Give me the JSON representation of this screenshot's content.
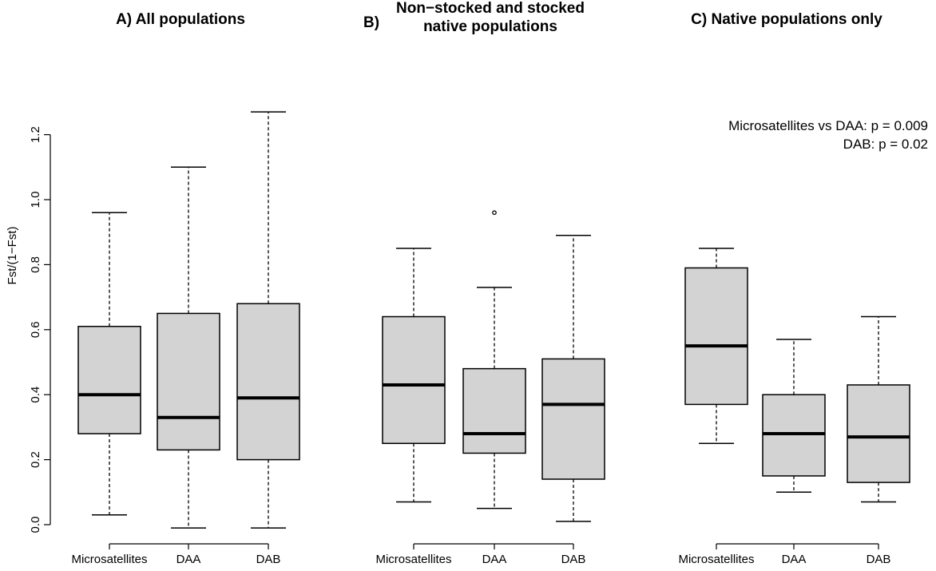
{
  "chart_data": {
    "type": "boxplot",
    "ylabel": "Fst/(1−Fst)",
    "ylim": [
      0,
      1.3
    ],
    "yticks": [
      0.0,
      0.2,
      0.4,
      0.6,
      0.8,
      1.0,
      1.2
    ],
    "ytick_labels": [
      "0.0",
      "0.2",
      "0.4",
      "0.6",
      "0.8",
      "1.0",
      "1.2"
    ],
    "box_fill": "#d3d3d3",
    "panels": [
      {
        "title_letter": "A)",
        "title_lines": [
          "All populations"
        ],
        "annotation_lines": [],
        "categories": [
          "Microsatellites",
          "DAA",
          "DAB"
        ],
        "boxes": [
          {
            "min": 0.03,
            "q1": 0.28,
            "median": 0.4,
            "q3": 0.61,
            "max": 0.96,
            "outliers": []
          },
          {
            "min": -0.01,
            "q1": 0.23,
            "median": 0.33,
            "q3": 0.65,
            "max": 1.1,
            "outliers": []
          },
          {
            "min": -0.01,
            "q1": 0.2,
            "median": 0.39,
            "q3": 0.68,
            "max": 1.27,
            "outliers": []
          }
        ]
      },
      {
        "title_letter": "B)",
        "title_lines": [
          "Non−stocked and stocked",
          "native populations"
        ],
        "annotation_lines": [],
        "categories": [
          "Microsatellites",
          "DAA",
          "DAB"
        ],
        "boxes": [
          {
            "min": 0.07,
            "q1": 0.25,
            "median": 0.43,
            "q3": 0.64,
            "max": 0.85,
            "outliers": []
          },
          {
            "min": 0.05,
            "q1": 0.22,
            "median": 0.28,
            "q3": 0.48,
            "max": 0.73,
            "outliers": [
              0.96
            ]
          },
          {
            "min": 0.01,
            "q1": 0.14,
            "median": 0.37,
            "q3": 0.51,
            "max": 0.89,
            "outliers": []
          }
        ]
      },
      {
        "title_letter": "C)",
        "title_lines": [
          "Native populations only"
        ],
        "annotation_lines": [
          "Microsatellites vs DAA: p = 0.009",
          "DAB: p = 0.02"
        ],
        "categories": [
          "Microsatellites",
          "DAA",
          "DAB"
        ],
        "boxes": [
          {
            "min": 0.25,
            "q1": 0.37,
            "median": 0.55,
            "q3": 0.79,
            "max": 0.85,
            "outliers": []
          },
          {
            "min": 0.1,
            "q1": 0.15,
            "median": 0.28,
            "q3": 0.4,
            "max": 0.57,
            "outliers": []
          },
          {
            "min": 0.07,
            "q1": 0.13,
            "median": 0.27,
            "q3": 0.43,
            "max": 0.64,
            "outliers": []
          }
        ]
      }
    ]
  }
}
